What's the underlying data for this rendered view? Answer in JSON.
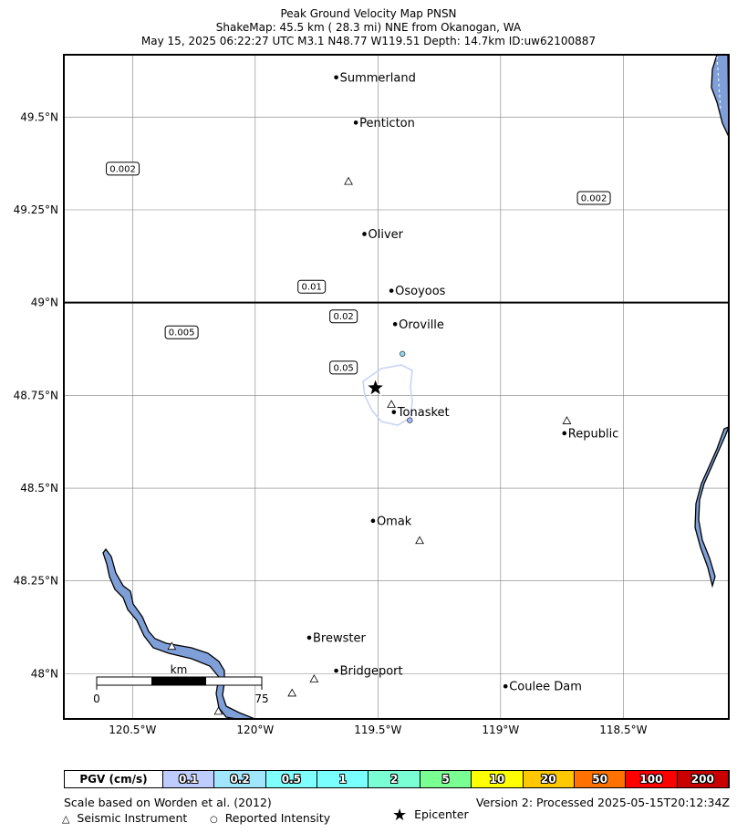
{
  "header": {
    "title": "Peak Ground Velocity Map PNSN",
    "subtitle": "ShakeMap: 45.5 km (  28.3 mi) NNE from Okanogan, WA",
    "event_line": "May 15, 2025 06:22:27 UTC M3.1 N48.77 W119.51 Depth: 14.7km ID:uw62100887"
  },
  "map": {
    "lon_range": [
      -120.78,
      -118.07
    ],
    "lat_range": [
      47.878,
      49.668
    ],
    "lat_ticks": [
      {
        "value": 49.5,
        "label": "49.5°N"
      },
      {
        "value": 49.25,
        "label": "49.25°N"
      },
      {
        "value": 49.0,
        "label": "49°N"
      },
      {
        "value": 48.75,
        "label": "48.75°N"
      },
      {
        "value": 48.5,
        "label": "48.5°N"
      },
      {
        "value": 48.25,
        "label": "48.25°N"
      },
      {
        "value": 48.0,
        "label": "48°N"
      }
    ],
    "lon_ticks": [
      {
        "value": -120.5,
        "label": "120.5°W"
      },
      {
        "value": -120.0,
        "label": "120°W"
      },
      {
        "value": -119.5,
        "label": "119.5°W"
      },
      {
        "value": -119.0,
        "label": "119°W"
      },
      {
        "value": -118.5,
        "label": "118.5°W"
      }
    ],
    "border_lat": 49.0,
    "cities": [
      {
        "name": "Summerland",
        "lon": -119.67,
        "lat": 49.607
      },
      {
        "name": "Penticton",
        "lon": -119.59,
        "lat": 49.485
      },
      {
        "name": "Oliver",
        "lon": -119.555,
        "lat": 49.185
      },
      {
        "name": "Osoyoos",
        "lon": -119.445,
        "lat": 49.032
      },
      {
        "name": "Oroville",
        "lon": -119.43,
        "lat": 48.942
      },
      {
        "name": "Tonasket",
        "lon": -119.435,
        "lat": 48.705
      },
      {
        "name": "Republic",
        "lon": -118.74,
        "lat": 48.648
      },
      {
        "name": "Omak",
        "lon": -119.52,
        "lat": 48.412
      },
      {
        "name": "Brewster",
        "lon": -119.78,
        "lat": 48.097
      },
      {
        "name": "Bridgeport",
        "lon": -119.67,
        "lat": 48.008
      },
      {
        "name": "Coulee Dam",
        "lon": -118.98,
        "lat": 47.966
      }
    ],
    "contour_labels": [
      {
        "text": "0.002",
        "lon": -120.54,
        "lat": 49.361
      },
      {
        "text": "0.002",
        "lon": -118.62,
        "lat": 49.282
      },
      {
        "text": "0.01",
        "lon": -119.77,
        "lat": 49.043
      },
      {
        "text": "0.005",
        "lon": -120.3,
        "lat": 48.92
      },
      {
        "text": "0.02",
        "lon": -119.64,
        "lat": 48.963
      },
      {
        "text": "0.05",
        "lon": -119.64,
        "lat": 48.825
      }
    ],
    "instruments": [
      {
        "lon": -119.62,
        "lat": 49.326
      },
      {
        "lon": -119.445,
        "lat": 48.725
      },
      {
        "lon": -119.33,
        "lat": 48.358
      },
      {
        "lon": -118.73,
        "lat": 48.681
      },
      {
        "lon": -120.34,
        "lat": 48.073
      },
      {
        "lon": -119.76,
        "lat": 47.985
      },
      {
        "lon": -119.85,
        "lat": 47.947
      },
      {
        "lon": -120.15,
        "lat": 47.898
      }
    ],
    "reported_intensity": [
      {
        "lon": -119.4,
        "lat": 48.862,
        "color": "#8fd8f0"
      },
      {
        "lon": -119.37,
        "lat": 48.683,
        "color": "#a8b8ff"
      }
    ],
    "epicenter": {
      "lon": -119.51,
      "lat": 48.77
    },
    "scalebar": {
      "unit": "km",
      "start": "0",
      "end": "75",
      "km": 75
    },
    "colors": {
      "water": "#7f9fd8",
      "contour": "#c8d4f5",
      "grid": "#808080"
    }
  },
  "legend": {
    "label": "PGV (cm/s)",
    "bins": [
      {
        "label": "0.1",
        "color": "#bfccff"
      },
      {
        "label": "0.2",
        "color": "#a0e6ff"
      },
      {
        "label": "0.5",
        "color": "#80ffff"
      },
      {
        "label": "1",
        "color": "#7affff"
      },
      {
        "label": "2",
        "color": "#7affd4"
      },
      {
        "label": "5",
        "color": "#7aff93"
      },
      {
        "label": "10",
        "color": "#ffff00"
      },
      {
        "label": "20",
        "color": "#ffc800"
      },
      {
        "label": "50",
        "color": "#ff7100"
      },
      {
        "label": "100",
        "color": "#ff0000"
      },
      {
        "label": "200",
        "color": "#c80000"
      }
    ]
  },
  "footer": {
    "credit": "Scale based on Worden et al. (2012)",
    "version": "Version 2: Processed 2025-05-15T20:12:34Z",
    "key_instrument": "Seismic Instrument",
    "key_reported": "Reported Intensity",
    "key_epicenter": "Epicenter"
  }
}
